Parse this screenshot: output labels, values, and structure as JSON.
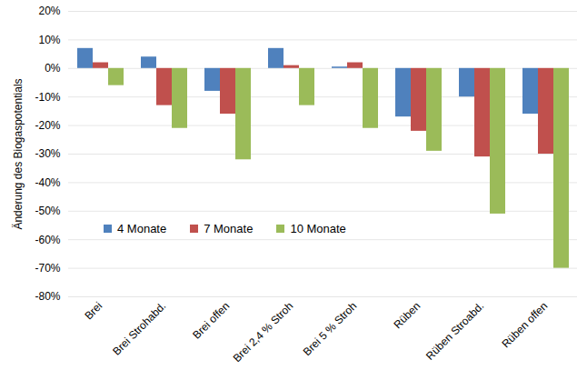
{
  "chart_data": {
    "type": "bar",
    "y_label": "Änderung des Biogaspotentials",
    "categories": [
      "Brei",
      "Brei Strohabd.",
      "Brei offen",
      "Brei 2,4 % Stroh",
      "Brei 5 % Stroh",
      "Rüben",
      "Rüben Stroabd.",
      "Rüben offen"
    ],
    "series": [
      {
        "name": "4 Monate",
        "color": "#4f81bd",
        "values": [
          7,
          4,
          -8,
          7,
          0.5,
          -17,
          -10,
          -16
        ]
      },
      {
        "name": "7 Monate",
        "color": "#c0504d",
        "values": [
          2,
          -13,
          -16,
          1,
          2,
          -22,
          -31,
          -30
        ]
      },
      {
        "name": "10 Monate",
        "color": "#9bbb59",
        "values": [
          -6,
          -21,
          -32,
          -13,
          -21,
          -29,
          -51,
          -70
        ]
      }
    ],
    "ylim": [
      -80,
      20
    ],
    "yticks": [
      {
        "value": -80,
        "label": "-80%"
      },
      {
        "value": -70,
        "label": "-70%"
      },
      {
        "value": -60,
        "label": "-60%"
      },
      {
        "value": -50,
        "label": "-50%"
      },
      {
        "value": -40,
        "label": "-40%"
      },
      {
        "value": -30,
        "label": "-30%"
      },
      {
        "value": -20,
        "label": "-20%"
      },
      {
        "value": -10,
        "label": "-10%"
      },
      {
        "value": 0,
        "label": "0%"
      },
      {
        "value": 10,
        "label": "10%"
      },
      {
        "value": 20,
        "label": "20%"
      }
    ],
    "grid": true,
    "legend": "bottom-left"
  }
}
